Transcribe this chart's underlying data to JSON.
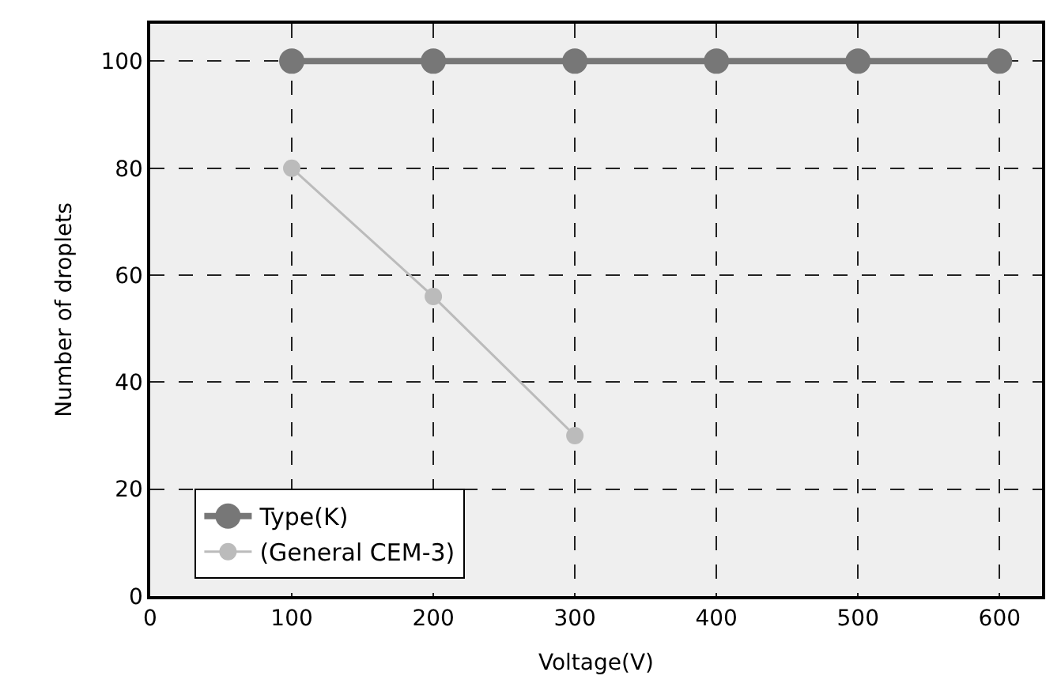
{
  "chart_data": {
    "type": "line",
    "xlabel": "Voltage(V)",
    "ylabel": "Number of droplets",
    "x": [
      100,
      200,
      300,
      400,
      500,
      600
    ],
    "series": [
      {
        "name": "Type(K)",
        "color": "#777777",
        "values": [
          100,
          100,
          100,
          100,
          100,
          100
        ]
      },
      {
        "name": "(General CEM-3)",
        "color": "#bbbbbb",
        "values": [
          80,
          56,
          30,
          null,
          null,
          null
        ]
      }
    ],
    "xlim": [
      0,
      630
    ],
    "xticks": [
      0,
      100,
      200,
      300,
      400,
      500,
      600
    ],
    "ylim": [
      0,
      107
    ],
    "yticks": [
      0,
      20,
      40,
      60,
      80,
      100
    ],
    "grid": true,
    "legend": "bottom left",
    "marker": "circle",
    "line_style": "solid"
  }
}
